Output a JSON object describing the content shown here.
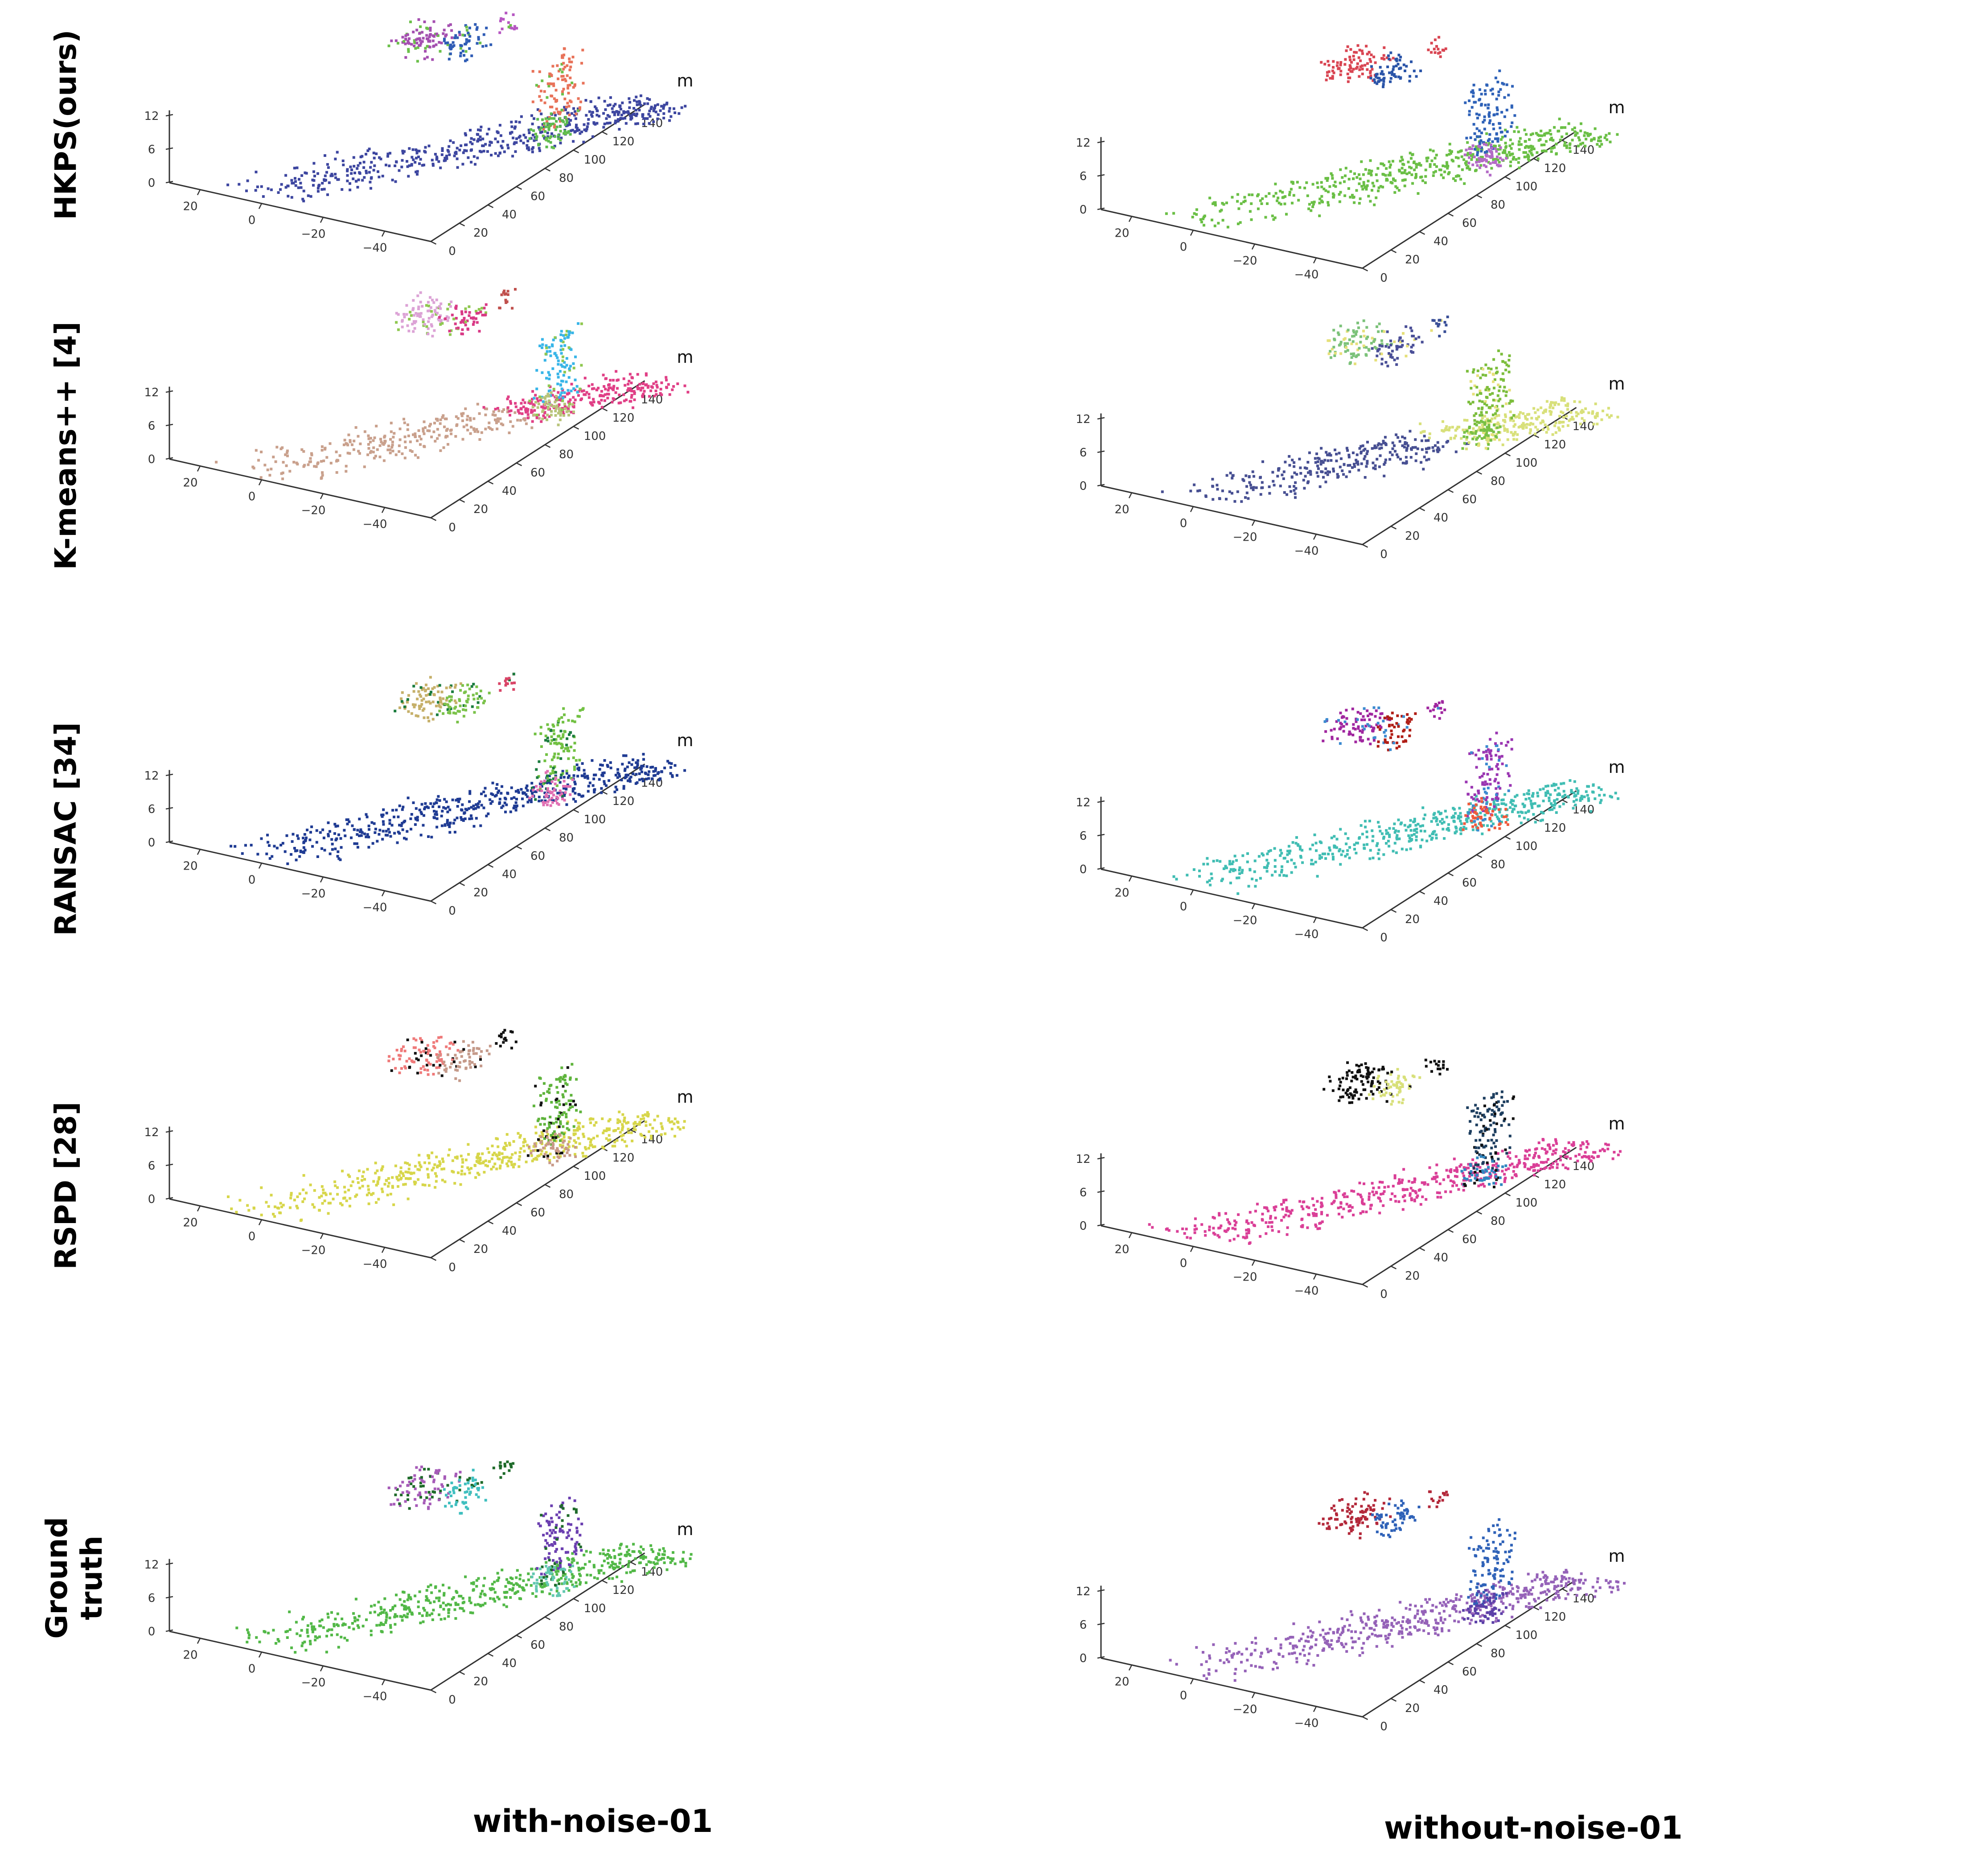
{
  "figure": {
    "columns": [
      "with-noise-01",
      "without-noise-01"
    ],
    "rows": [
      {
        "label": "HKPS(ours)",
        "label_lines": [
          "HKPS(ours)"
        ]
      },
      {
        "label": "K-means++ [4]",
        "label_lines": [
          "K-means++  [4]"
        ]
      },
      {
        "label": "RANSAC [34]",
        "label_lines": [
          "RANSAC [34]"
        ]
      },
      {
        "label": "RSPD [28]",
        "label_lines": [
          "RSPD [28]"
        ]
      },
      {
        "label": "Ground truth",
        "label_lines": [
          "Ground",
          "truth"
        ]
      }
    ]
  },
  "chart_data": {
    "type": "scatter3d",
    "description_axes": {
      "x_ticks": [
        20,
        0,
        -20,
        -40
      ],
      "y_ticks": [
        0,
        20,
        40,
        60,
        80,
        100,
        120,
        140
      ],
      "z_ticks": [
        12,
        6,
        0
      ],
      "unit": "m",
      "xlim": [
        30,
        -55
      ],
      "ylim": [
        0,
        150
      ],
      "zlim": [
        0,
        13
      ]
    },
    "segments": [
      {
        "id": "road",
        "kind": "strip",
        "x0": [
          -8,
          12
        ],
        "y0": [
          0,
          6
        ],
        "slope_x": -0.42,
        "len": [
          0,
          150
        ],
        "z": [
          0,
          2
        ],
        "density": 520,
        "tail_start": 95
      },
      {
        "id": "left-wall-a",
        "kind": "box",
        "x": [
          -5,
          8
        ],
        "y": [
          105,
          130
        ],
        "z": [
          8,
          12
        ],
        "density": 90
      },
      {
        "id": "left-wall-b",
        "kind": "box",
        "x": [
          -14,
          -5
        ],
        "y": [
          110,
          132
        ],
        "z": [
          8,
          12
        ],
        "density": 60
      },
      {
        "id": "small-sign",
        "kind": "box",
        "x": [
          -15,
          -10
        ],
        "y": [
          140,
          148
        ],
        "z": [
          9,
          12
        ],
        "density": 15
      },
      {
        "id": "tower-plane",
        "kind": "box",
        "x": [
          -44,
          -38
        ],
        "y": [
          108,
          132
        ],
        "z": [
          0,
          12
        ],
        "density": 110
      },
      {
        "id": "tower-arm",
        "kind": "box",
        "x": [
          -52,
          -42
        ],
        "y": [
          95,
          110
        ],
        "z": [
          0,
          4
        ],
        "density": 60
      }
    ],
    "panels": [
      {
        "row": "HKPS(ours)",
        "column": "with-noise-01",
        "colors": {
          "road": "#3d46a0",
          "left-wall-a": "#a44fb0",
          "left-wall-b": "#2f5cb5",
          "small-sign": "#b657c2",
          "tower-plane": "#e8735a",
          "tower-arm": "#5cba4e",
          "extra": "#6cc04a"
        }
      },
      {
        "row": "HKPS(ours)",
        "column": "without-noise-01",
        "colors": {
          "road": "#6abf45",
          "left-wall-a": "#d94552",
          "left-wall-b": "#2a54a8",
          "small-sign": "#d94552",
          "tower-plane": "#2f62b8",
          "tower-arm": "#b36ac6"
        }
      },
      {
        "row": "K-means++ [4]",
        "column": "with-noise-01",
        "colors": {
          "road": "#c9a08c",
          "road_tail": "#e03f86",
          "left-wall-a": "#dca3d6",
          "left-wall-b": "#d93a86",
          "small-sign": "#c0504d",
          "tower-plane": "#38b5e8",
          "tower-arm": "#b8c47a",
          "extra": "#8fc850"
        }
      },
      {
        "row": "K-means++ [4]",
        "column": "without-noise-01",
        "colors": {
          "road": "#474f92",
          "road_tail": "#d8e07a",
          "left-wall-a": "#7cc27a",
          "left-wall-b": "#4a4f97",
          "small-sign": "#3a4f97",
          "tower-plane": "#7cbd3c",
          "tower-arm": "#78c044",
          "extra": "#e6e07a"
        }
      },
      {
        "row": "RANSAC [34]",
        "column": "with-noise-01",
        "colors": {
          "road": "#1f3b93",
          "left-wall-a": "#c6b06a",
          "left-wall-b": "#7bc24a",
          "small-sign": "#d94567",
          "tower-plane": "#72c143",
          "tower-arm": "#e06fb2",
          "extra": "#1b7c3e"
        }
      },
      {
        "row": "RANSAC [34]",
        "column": "without-noise-01",
        "colors": {
          "road": "#40bdb3",
          "left-wall-a": "#a0269f",
          "left-wall-b": "#b01e16",
          "small-sign": "#a0269f",
          "tower-plane": "#9a36b2",
          "tower-arm": "#f05a3c",
          "extra": "#3c8ad0"
        }
      },
      {
        "row": "RSPD [28]",
        "column": "with-noise-01",
        "colors": {
          "road": "#d7d64a",
          "left-wall-a": "#ef7a7a",
          "left-wall-b": "#c59a8a",
          "small-sign": "#111111",
          "tower-plane": "#5fb43c",
          "tower-arm": "#c89a88",
          "extra": "#111111"
        }
      },
      {
        "row": "RSPD [28]",
        "column": "without-noise-01",
        "colors": {
          "road": "#da3f97",
          "left-wall-a": "#111111",
          "left-wall-b": "#d8e07a",
          "small-sign": "#111111",
          "tower-plane": "#1d3e5f",
          "tower-arm": "#2f86c0",
          "extra": "#111111"
        }
      },
      {
        "row": "Ground truth",
        "column": "with-noise-01",
        "colors": {
          "road": "#52b847",
          "left-wall-a": "#a65bb8",
          "left-wall-b": "#3fbfbf",
          "small-sign": "#1f6b2a",
          "tower-plane": "#6b3fb0",
          "tower-arm": "#62c8b0",
          "extra": "#1f6b2a"
        }
      },
      {
        "row": "Ground truth",
        "column": "without-noise-01",
        "colors": {
          "road": "#9562b8",
          "left-wall-a": "#b3283a",
          "left-wall-b": "#2f62b8",
          "small-sign": "#b3283a",
          "tower-plane": "#2f62b8",
          "tower-arm": "#5b40a8"
        }
      }
    ]
  }
}
